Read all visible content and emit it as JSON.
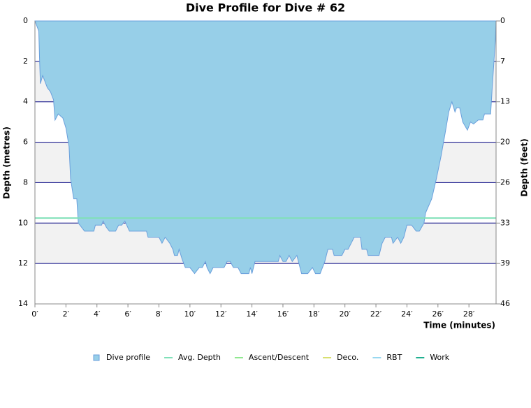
{
  "chart_data": {
    "type": "area",
    "title": "Dive Profile for Dive # 62",
    "xlabel": "Time (minutes)",
    "ylabel": "Depth (metres)",
    "y2label": "Depth (feet)",
    "xlim": [
      0,
      29.75
    ],
    "xticks": [
      {
        "value": 0,
        "label": "0′"
      },
      {
        "value": 2,
        "label": "2′"
      },
      {
        "value": 4,
        "label": "4′"
      },
      {
        "value": 6,
        "label": "6′"
      },
      {
        "value": 8,
        "label": "8′"
      },
      {
        "value": 10,
        "label": "10′"
      },
      {
        "value": 12,
        "label": "12′"
      },
      {
        "value": 14,
        "label": "14′"
      },
      {
        "value": 16,
        "label": "16′"
      },
      {
        "value": 18,
        "label": "18′"
      },
      {
        "value": 20,
        "label": "20′"
      },
      {
        "value": 22,
        "label": "22′"
      },
      {
        "value": 24,
        "label": "24′"
      },
      {
        "value": 26,
        "label": "26′"
      },
      {
        "value": 28,
        "label": "28′"
      }
    ],
    "ylim": [
      0,
      14
    ],
    "yticks": [
      0,
      2,
      4,
      6,
      8,
      10,
      12,
      14
    ],
    "y_inverted": true,
    "y2lim": [
      0,
      45.93
    ],
    "y2ticks": [
      {
        "value": 0,
        "label": "0"
      },
      {
        "value": 6.56,
        "label": "7"
      },
      {
        "value": 13.12,
        "label": "13"
      },
      {
        "value": 19.69,
        "label": "20"
      },
      {
        "value": 26.25,
        "label": "26"
      },
      {
        "value": 32.81,
        "label": "33"
      },
      {
        "value": 39.37,
        "label": "39"
      },
      {
        "value": 45.93,
        "label": "46"
      }
    ],
    "grid": true,
    "grid_color": "#000080",
    "band_color": "#f2f2f2",
    "legend": "bottom",
    "series": [
      {
        "name": "Dive profile",
        "color": "#97cfe8",
        "line_color": "#6a9fdc",
        "x": [
          0,
          0.25,
          0.3,
          0.35,
          0.5,
          0.7,
          0.8,
          1.0,
          1.2,
          1.3,
          1.5,
          1.8,
          2.0,
          2.2,
          2.3,
          2.5,
          2.7,
          2.8,
          3.2,
          3.8,
          3.9,
          4.3,
          4.4,
          4.6,
          4.8,
          5.2,
          5.4,
          5.6,
          5.8,
          6.1,
          7.2,
          7.3,
          8.0,
          8.2,
          8.4,
          8.7,
          8.9,
          9.0,
          9.2,
          9.3,
          9.5,
          9.7,
          10.0,
          10.3,
          10.6,
          10.8,
          11.0,
          11.1,
          11.3,
          11.5,
          12.2,
          12.4,
          12.6,
          12.8,
          13.1,
          13.3,
          13.8,
          13.9,
          14.0,
          14.2,
          15.7,
          15.8,
          16.0,
          16.2,
          16.4,
          16.6,
          16.9,
          17.0,
          17.2,
          17.6,
          17.9,
          18.1,
          18.4,
          18.7,
          18.9,
          19.2,
          19.3,
          19.8,
          20.0,
          20.2,
          20.4,
          20.6,
          21.0,
          21.1,
          21.4,
          21.5,
          22.2,
          22.4,
          22.6,
          23.0,
          23.1,
          23.4,
          23.6,
          23.8,
          24.0,
          24.3,
          24.6,
          24.8,
          25.1,
          25.2,
          25.6,
          25.9,
          26.2,
          26.5,
          26.7,
          26.9,
          27.1,
          27.2,
          27.4,
          27.6,
          27.9,
          28.1,
          28.3,
          28.6,
          28.9,
          29.0,
          29.4,
          29.5,
          29.7,
          29.75
        ],
        "values": [
          0,
          0.5,
          2,
          3.1,
          2.7,
          3.1,
          3.3,
          3.5,
          3.9,
          4.9,
          4.6,
          4.8,
          5.3,
          6.2,
          7.8,
          8.8,
          8.8,
          10.0,
          10.4,
          10.4,
          10.1,
          10.1,
          9.9,
          10.2,
          10.4,
          10.4,
          10.1,
          10.1,
          9.9,
          10.4,
          10.4,
          10.7,
          10.7,
          11.0,
          10.7,
          11.0,
          11.3,
          11.6,
          11.6,
          11.3,
          11.8,
          12.2,
          12.2,
          12.5,
          12.2,
          12.2,
          11.9,
          12.2,
          12.5,
          12.2,
          12.2,
          11.9,
          11.9,
          12.2,
          12.2,
          12.5,
          12.5,
          12.2,
          12.5,
          11.9,
          11.9,
          11.6,
          11.9,
          11.9,
          11.6,
          11.9,
          11.6,
          11.9,
          12.5,
          12.5,
          12.2,
          12.5,
          12.5,
          11.9,
          11.3,
          11.3,
          11.6,
          11.6,
          11.3,
          11.3,
          11.0,
          10.7,
          10.7,
          11.3,
          11.3,
          11.6,
          11.6,
          11.0,
          10.7,
          10.7,
          11.0,
          10.7,
          11.0,
          10.7,
          10.1,
          10.1,
          10.4,
          10.4,
          10.0,
          9.5,
          8.8,
          7.8,
          6.7,
          5.4,
          4.5,
          4.0,
          4.5,
          4.3,
          4.3,
          5.0,
          5.4,
          5.0,
          5.1,
          4.9,
          4.9,
          4.6,
          4.6,
          3.3,
          1,
          0
        ]
      },
      {
        "name": "Avg. Depth",
        "color": "#80e0b8",
        "x": [
          0,
          29.75
        ],
        "values": [
          9.75,
          9.75
        ]
      },
      {
        "name": "Ascent/Descent",
        "color": "#90e890",
        "x": [],
        "values": []
      },
      {
        "name": "Deco.",
        "color": "#d8e070",
        "x": [],
        "values": []
      },
      {
        "name": "RBT",
        "color": "#98d8f0",
        "x": [],
        "values": []
      },
      {
        "name": "Work",
        "color": "#20b090",
        "x": [],
        "values": []
      }
    ]
  }
}
